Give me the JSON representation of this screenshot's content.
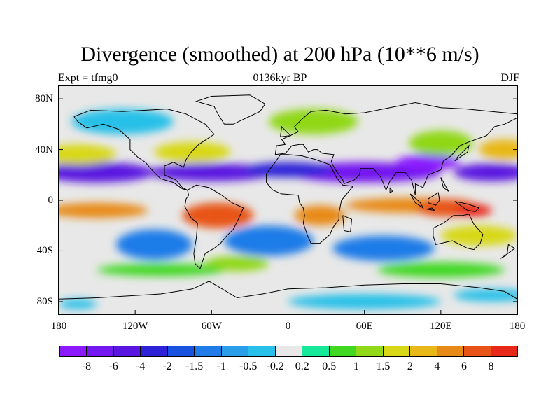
{
  "title": "Divergence (smoothed) at 200 hPa (10**6 m/s)",
  "subtitle_left": "Expt = tfmg0",
  "subtitle_center": "0136kyr BP",
  "subtitle_right": "DJF",
  "map": {
    "projection": "cylindrical-equidistant",
    "lon_range": [
      -180,
      180
    ],
    "lat_range": [
      -90,
      90
    ],
    "lat_ticks": [
      {
        "label": "80N",
        "lat": 80
      },
      {
        "label": "40N",
        "lat": 40
      },
      {
        "label": "0",
        "lat": 0
      },
      {
        "label": "40S",
        "lat": -40
      },
      {
        "label": "80S",
        "lat": -80
      }
    ],
    "lon_ticks": [
      {
        "label": "180",
        "lon": -180
      },
      {
        "label": "120W",
        "lon": -120
      },
      {
        "label": "60W",
        "lon": -60
      },
      {
        "label": "0",
        "lon": 0
      },
      {
        "label": "60E",
        "lon": 60
      },
      {
        "label": "120E",
        "lon": 120
      },
      {
        "label": "180",
        "lon": 180
      }
    ],
    "background_color": "#e8e8e8"
  },
  "colorbar": {
    "colors": [
      "#8c1aff",
      "#7318f0",
      "#5a16e0",
      "#2e22d8",
      "#1a52e0",
      "#1f7ce8",
      "#2a9ee8",
      "#28c0e8",
      "#e8e8e8",
      "#18e89a",
      "#40d820",
      "#90d818",
      "#d8d818",
      "#e8b818",
      "#e88a18",
      "#e85418",
      "#e82818"
    ],
    "labels": [
      "-8",
      "-6",
      "-4",
      "-2",
      "-1.5",
      "-1",
      "-0.5",
      "-0.2",
      "0.2",
      "0.5",
      "1",
      "1.5",
      "2",
      "4",
      "6",
      "8"
    ]
  },
  "field_blobs": [
    {
      "lon": -150,
      "lat": 22,
      "rx": 45,
      "ry": 8,
      "level": 2
    },
    {
      "lon": -60,
      "lat": 22,
      "rx": 50,
      "ry": 7,
      "level": 2
    },
    {
      "lon": 60,
      "lat": 22,
      "rx": 60,
      "ry": 8,
      "level": 1
    },
    {
      "lon": 110,
      "lat": 30,
      "rx": 25,
      "ry": 6,
      "level": 0
    },
    {
      "lon": 160,
      "lat": 22,
      "rx": 30,
      "ry": 7,
      "level": 2
    },
    {
      "lon": 0,
      "lat": 24,
      "rx": 35,
      "ry": 6,
      "level": 3
    },
    {
      "lon": -150,
      "lat": -8,
      "rx": 40,
      "ry": 6,
      "level": 14
    },
    {
      "lon": -55,
      "lat": -12,
      "rx": 28,
      "ry": 10,
      "level": 15
    },
    {
      "lon": 25,
      "lat": -12,
      "rx": 20,
      "ry": 8,
      "level": 14
    },
    {
      "lon": 95,
      "lat": -4,
      "rx": 50,
      "ry": 6,
      "level": 14
    },
    {
      "lon": 125,
      "lat": -6,
      "rx": 25,
      "ry": 7,
      "level": 15
    },
    {
      "lon": 145,
      "lat": -8,
      "rx": 15,
      "ry": 5,
      "level": 16
    },
    {
      "lon": -165,
      "lat": 36,
      "rx": 30,
      "ry": 8,
      "level": 12
    },
    {
      "lon": -75,
      "lat": 38,
      "rx": 30,
      "ry": 8,
      "level": 12
    },
    {
      "lon": 20,
      "lat": 62,
      "rx": 35,
      "ry": 10,
      "level": 11
    },
    {
      "lon": 120,
      "lat": 45,
      "rx": 25,
      "ry": 10,
      "level": 11
    },
    {
      "lon": 170,
      "lat": 40,
      "rx": 20,
      "ry": 8,
      "level": 13
    },
    {
      "lon": -105,
      "lat": -35,
      "rx": 30,
      "ry": 12,
      "level": 5
    },
    {
      "lon": -15,
      "lat": -32,
      "rx": 35,
      "ry": 12,
      "level": 5
    },
    {
      "lon": 75,
      "lat": -38,
      "rx": 40,
      "ry": 10,
      "level": 5
    },
    {
      "lon": -130,
      "lat": 62,
      "rx": 40,
      "ry": 10,
      "level": 7
    },
    {
      "lon": -40,
      "lat": -50,
      "rx": 25,
      "ry": 6,
      "level": 11
    },
    {
      "lon": 120,
      "lat": -55,
      "rx": 50,
      "ry": 6,
      "level": 10
    },
    {
      "lon": -100,
      "lat": -55,
      "rx": 50,
      "ry": 5,
      "level": 10
    },
    {
      "lon": 60,
      "lat": -80,
      "rx": 60,
      "ry": 6,
      "level": 7
    },
    {
      "lon": 160,
      "lat": -75,
      "rx": 30,
      "ry": 5,
      "level": 7
    },
    {
      "lon": -165,
      "lat": -82,
      "rx": 15,
      "ry": 4,
      "level": 7
    },
    {
      "lon": 150,
      "lat": -28,
      "rx": 30,
      "ry": 8,
      "level": 12
    }
  ],
  "coastlines": [
    [
      [
        -168,
        66
      ],
      [
        -155,
        71
      ],
      [
        -130,
        70
      ],
      [
        -95,
        72
      ],
      [
        -80,
        68
      ],
      [
        -65,
        60
      ],
      [
        -58,
        52
      ],
      [
        -70,
        44
      ],
      [
        -76,
        38
      ],
      [
        -80,
        32
      ],
      [
        -82,
        26
      ],
      [
        -90,
        30
      ],
      [
        -97,
        27
      ],
      [
        -97,
        20
      ],
      [
        -88,
        16
      ],
      [
        -83,
        10
      ],
      [
        -79,
        8
      ],
      [
        -83,
        9
      ],
      [
        -90,
        14
      ],
      [
        -100,
        17
      ],
      [
        -106,
        23
      ],
      [
        -112,
        30
      ],
      [
        -118,
        34
      ],
      [
        -124,
        40
      ],
      [
        -124,
        48
      ],
      [
        -133,
        56
      ],
      [
        -145,
        60
      ],
      [
        -158,
        57
      ],
      [
        -165,
        62
      ],
      [
        -168,
        66
      ]
    ],
    [
      [
        -79,
        8
      ],
      [
        -72,
        12
      ],
      [
        -62,
        10
      ],
      [
        -52,
        4
      ],
      [
        -44,
        -2
      ],
      [
        -35,
        -6
      ],
      [
        -39,
        -15
      ],
      [
        -43,
        -23
      ],
      [
        -48,
        -28
      ],
      [
        -53,
        -34
      ],
      [
        -58,
        -38
      ],
      [
        -65,
        -42
      ],
      [
        -67,
        -48
      ],
      [
        -69,
        -54
      ],
      [
        -73,
        -50
      ],
      [
        -74,
        -42
      ],
      [
        -72,
        -30
      ],
      [
        -71,
        -18
      ],
      [
        -76,
        -14
      ],
      [
        -81,
        -5
      ],
      [
        -80,
        1
      ],
      [
        -78,
        4
      ],
      [
        -79,
        8
      ]
    ],
    [
      [
        -50,
        60
      ],
      [
        -43,
        60
      ],
      [
        -22,
        70
      ],
      [
        -18,
        76
      ],
      [
        -30,
        83
      ],
      [
        -60,
        82
      ],
      [
        -72,
        78
      ],
      [
        -58,
        74
      ],
      [
        -55,
        68
      ],
      [
        -50,
        60
      ]
    ],
    [
      [
        -17,
        21
      ],
      [
        -17,
        14
      ],
      [
        -12,
        8
      ],
      [
        -5,
        5
      ],
      [
        8,
        4
      ],
      [
        9,
        -2
      ],
      [
        12,
        -6
      ],
      [
        13,
        -12
      ],
      [
        12,
        -18
      ],
      [
        15,
        -27
      ],
      [
        18,
        -34
      ],
      [
        25,
        -34
      ],
      [
        33,
        -27
      ],
      [
        35,
        -22
      ],
      [
        40,
        -15
      ],
      [
        40,
        -10
      ],
      [
        42,
        0
      ],
      [
        51,
        11
      ],
      [
        43,
        12
      ],
      [
        38,
        18
      ],
      [
        33,
        28
      ],
      [
        22,
        32
      ],
      [
        11,
        35
      ],
      [
        0,
        36
      ],
      [
        -6,
        36
      ],
      [
        -10,
        30
      ],
      [
        -17,
        21
      ]
    ],
    [
      [
        -10,
        36
      ],
      [
        -9,
        43
      ],
      [
        -2,
        44
      ],
      [
        -5,
        48
      ],
      [
        2,
        51
      ],
      [
        8,
        54
      ],
      [
        5,
        58
      ],
      [
        11,
        64
      ],
      [
        18,
        70
      ],
      [
        30,
        71
      ],
      [
        45,
        68
      ],
      [
        60,
        69
      ],
      [
        80,
        73
      ],
      [
        100,
        77
      ],
      [
        120,
        73
      ],
      [
        140,
        72
      ],
      [
        160,
        70
      ],
      [
        180,
        68
      ],
      [
        180,
        65
      ],
      [
        170,
        60
      ],
      [
        162,
        58
      ],
      [
        156,
        51
      ],
      [
        142,
        46
      ],
      [
        135,
        43
      ],
      [
        128,
        35
      ],
      [
        122,
        31
      ],
      [
        120,
        24
      ],
      [
        110,
        20
      ],
      [
        106,
        10
      ],
      [
        100,
        13
      ],
      [
        100,
        4
      ],
      [
        97,
        16
      ],
      [
        92,
        22
      ],
      [
        85,
        22
      ],
      [
        80,
        15
      ],
      [
        77,
        8
      ],
      [
        73,
        18
      ],
      [
        67,
        25
      ],
      [
        57,
        25
      ],
      [
        56,
        20
      ],
      [
        52,
        16
      ],
      [
        44,
        13
      ],
      [
        43,
        16
      ],
      [
        38,
        23
      ],
      [
        35,
        28
      ],
      [
        34,
        31
      ],
      [
        36,
        36
      ],
      [
        27,
        37
      ],
      [
        23,
        40
      ],
      [
        20,
        40
      ],
      [
        16,
        38
      ],
      [
        12,
        44
      ],
      [
        9,
        44
      ],
      [
        3,
        43
      ],
      [
        -2,
        37
      ],
      [
        -10,
        36
      ]
    ],
    [
      [
        114,
        -22
      ],
      [
        122,
        -18
      ],
      [
        130,
        -12
      ],
      [
        137,
        -12
      ],
      [
        142,
        -11
      ],
      [
        146,
        -19
      ],
      [
        153,
        -27
      ],
      [
        151,
        -34
      ],
      [
        146,
        -39
      ],
      [
        141,
        -38
      ],
      [
        135,
        -35
      ],
      [
        129,
        -32
      ],
      [
        116,
        -35
      ],
      [
        114,
        -28
      ],
      [
        114,
        -22
      ]
    ],
    [
      [
        96,
        5
      ],
      [
        104,
        -2
      ],
      [
        106,
        -6
      ],
      [
        100,
        -2
      ],
      [
        96,
        5
      ]
    ],
    [
      [
        109,
        -7
      ],
      [
        115,
        -8
      ],
      [
        113,
        -6
      ],
      [
        109,
        -7
      ]
    ],
    [
      [
        110,
        1
      ],
      [
        118,
        6
      ],
      [
        119,
        0
      ],
      [
        116,
        -4
      ],
      [
        110,
        -2
      ],
      [
        110,
        1
      ]
    ],
    [
      [
        131,
        -1
      ],
      [
        141,
        -3
      ],
      [
        150,
        -6
      ],
      [
        147,
        -9
      ],
      [
        141,
        -8
      ],
      [
        131,
        -1
      ]
    ],
    [
      [
        -180,
        -78
      ],
      [
        -150,
        -77
      ],
      [
        -100,
        -74
      ],
      [
        -75,
        -70
      ],
      [
        -62,
        -64
      ],
      [
        -55,
        -68
      ],
      [
        -40,
        -77
      ],
      [
        -20,
        -74
      ],
      [
        0,
        -70
      ],
      [
        30,
        -69
      ],
      [
        60,
        -67
      ],
      [
        90,
        -66
      ],
      [
        120,
        -66
      ],
      [
        150,
        -69
      ],
      [
        170,
        -72
      ],
      [
        180,
        -78
      ]
    ],
    [
      [
        43,
        -12
      ],
      [
        50,
        -15
      ],
      [
        49,
        -25
      ],
      [
        44,
        -24
      ],
      [
        43,
        -12
      ]
    ],
    [
      [
        131,
        31
      ],
      [
        135,
        34
      ],
      [
        141,
        38
      ],
      [
        142,
        43
      ],
      [
        139,
        40
      ],
      [
        133,
        34
      ],
      [
        131,
        31
      ]
    ],
    [
      [
        -6,
        50
      ],
      [
        2,
        51
      ],
      [
        -3,
        56
      ],
      [
        -5,
        58
      ],
      [
        -6,
        50
      ]
    ],
    [
      [
        80,
        10
      ],
      [
        82,
        7
      ],
      [
        80,
        6
      ],
      [
        80,
        10
      ]
    ],
    [
      [
        120,
        18
      ],
      [
        126,
        7
      ],
      [
        122,
        10
      ],
      [
        120,
        18
      ]
    ],
    [
      [
        167,
        -46
      ],
      [
        174,
        -41
      ],
      [
        178,
        -38
      ],
      [
        173,
        -35
      ],
      [
        172,
        -43
      ],
      [
        167,
        -46
      ]
    ]
  ]
}
